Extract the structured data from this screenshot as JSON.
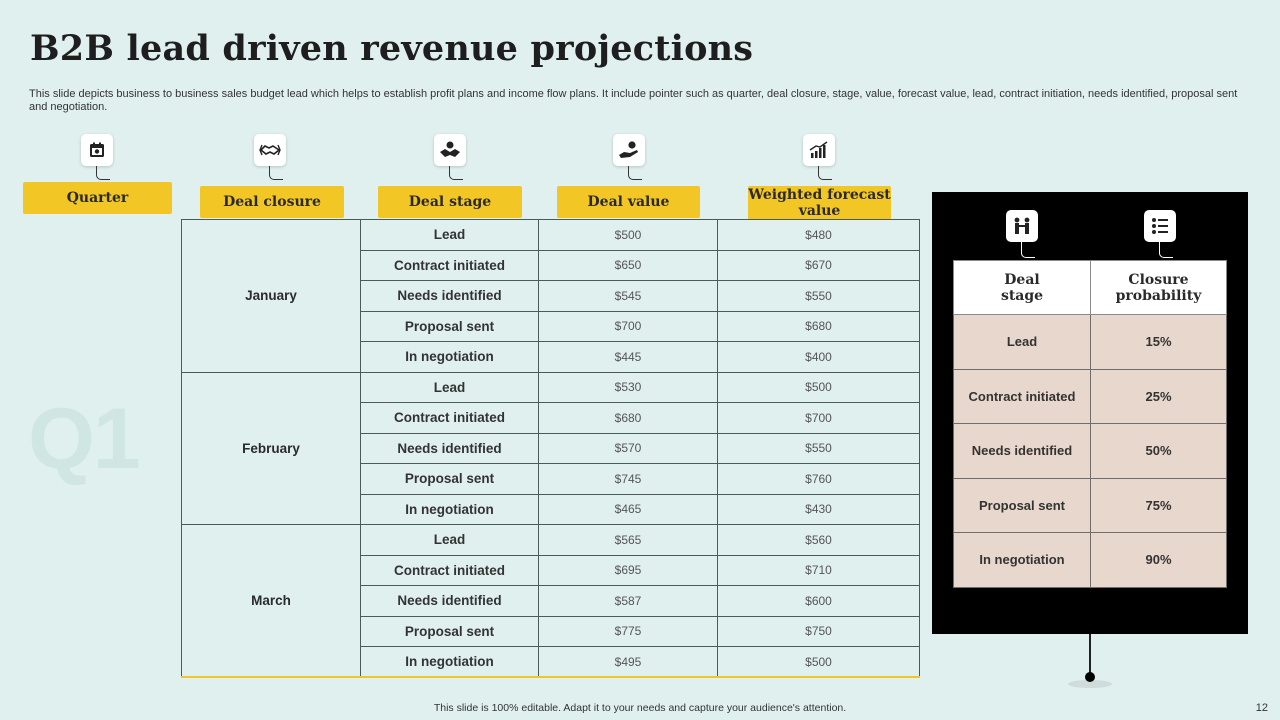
{
  "title": "B2B lead driven revenue projections",
  "subtitle": "This slide depicts business to business sales budget lead which helps to establish profit plans and income flow plans. It include pointer such as quarter, deal closure, stage, value, forecast value, lead, contract initiation, needs identified, proposal sent and negotiation.",
  "watermark": "Q1",
  "headers": {
    "quarter": "Quarter",
    "deal_closure": "Deal closure",
    "deal_stage": "Deal stage",
    "deal_value": "Deal value",
    "weighted_forecast": "Weighted forecast value"
  },
  "months": [
    {
      "name": "January",
      "rows": [
        {
          "stage": "Lead",
          "value": "$500",
          "forecast": "$480"
        },
        {
          "stage": "Contract initiated",
          "value": "$650",
          "forecast": "$670"
        },
        {
          "stage": "Needs identified",
          "value": "$545",
          "forecast": "$550"
        },
        {
          "stage": "Proposal sent",
          "value": "$700",
          "forecast": "$680"
        },
        {
          "stage": "In negotiation",
          "value": "$445",
          "forecast": "$400"
        }
      ]
    },
    {
      "name": "February",
      "rows": [
        {
          "stage": "Lead",
          "value": "$530",
          "forecast": "$500"
        },
        {
          "stage": "Contract initiated",
          "value": "$680",
          "forecast": "$700"
        },
        {
          "stage": "Needs identified",
          "value": "$570",
          "forecast": "$550"
        },
        {
          "stage": "Proposal sent",
          "value": "$745",
          "forecast": "$760"
        },
        {
          "stage": "In negotiation",
          "value": "$465",
          "forecast": "$430"
        }
      ]
    },
    {
      "name": "March",
      "rows": [
        {
          "stage": "Lead",
          "value": "$565",
          "forecast": "$560"
        },
        {
          "stage": "Contract initiated",
          "value": "$695",
          "forecast": "$710"
        },
        {
          "stage": "Needs identified",
          "value": "$587",
          "forecast": "$600"
        },
        {
          "stage": "Proposal sent",
          "value": "$775",
          "forecast": "$750"
        },
        {
          "stage": "In negotiation",
          "value": "$495",
          "forecast": "$500"
        }
      ]
    }
  ],
  "probability": {
    "header_stage": "Deal stage",
    "header_probability": "Closure probability",
    "rows": [
      {
        "stage": "Lead",
        "prob": "15%"
      },
      {
        "stage": "Contract initiated",
        "prob": "25%"
      },
      {
        "stage": "Needs identified",
        "prob": "50%"
      },
      {
        "stage": "Proposal sent",
        "prob": "75%"
      },
      {
        "stage": "In negotiation",
        "prob": "90%"
      }
    ]
  },
  "footer": "This slide is 100% editable.  Adapt it to your needs and capture your audience's attention.",
  "page_number": "12",
  "colors": {
    "background": "#e0f0ef",
    "header_yellow": "#f2c624",
    "panel_black": "#000000",
    "prob_cell": "#e8d7cc"
  },
  "icons": {
    "quarter": "calendar-icon",
    "deal_closure": "handshake-icon",
    "deal_stage": "deal-gear-icon",
    "deal_value": "money-hand-icon",
    "weighted_forecast": "growth-chart-icon",
    "prob_stage": "people-handshake-icon",
    "prob_probability": "checklist-icon"
  }
}
